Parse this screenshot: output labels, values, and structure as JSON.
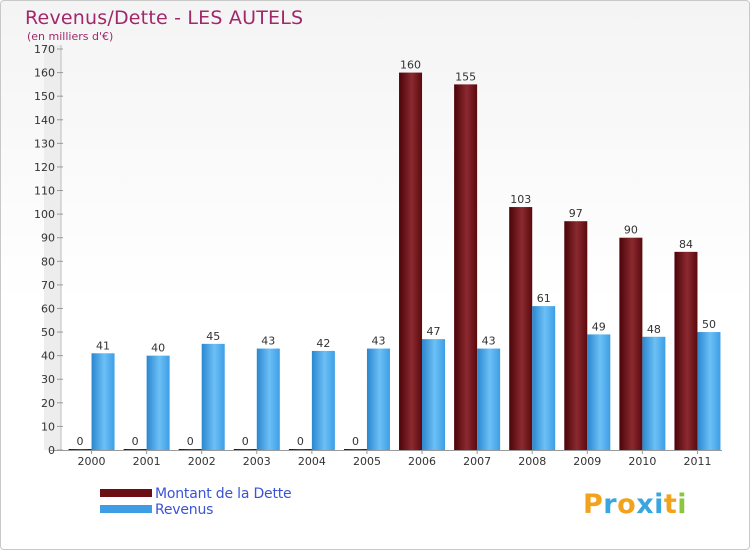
{
  "chart_data": {
    "type": "bar",
    "title": "Revenus/Dette - LES AUTELS",
    "subtitle": "(en milliers d'€)",
    "categories": [
      "2000",
      "2001",
      "2002",
      "2003",
      "2004",
      "2005",
      "2006",
      "2007",
      "2008",
      "2009",
      "2010",
      "2011"
    ],
    "series": [
      {
        "name": "Montant de la Dette",
        "color": "#6b0f14",
        "values": [
          0,
          0,
          0,
          0,
          0,
          0,
          160,
          155,
          103,
          97,
          90,
          84
        ]
      },
      {
        "name": "Revenus",
        "color": "#3d9ee6",
        "values": [
          41,
          40,
          45,
          43,
          42,
          43,
          47,
          43,
          61,
          49,
          48,
          50
        ]
      }
    ],
    "yticks": [
      0,
      10,
      20,
      30,
      40,
      50,
      60,
      70,
      80,
      90,
      100,
      110,
      120,
      130,
      140,
      150,
      160,
      170
    ],
    "ylim": [
      0,
      170
    ],
    "xlabel": "",
    "ylabel": "",
    "legend_position": "bottom-left",
    "grid": false
  },
  "branding": {
    "logo_letters": [
      "P",
      "r",
      "o",
      "x",
      "i",
      "t",
      "i"
    ],
    "logo_colors": [
      "#f3a21b",
      "#3aa6e0",
      "#f3a21b",
      "#3aa6e0",
      "#3aa6e0",
      "#f3a21b",
      "#8cc63f"
    ]
  }
}
